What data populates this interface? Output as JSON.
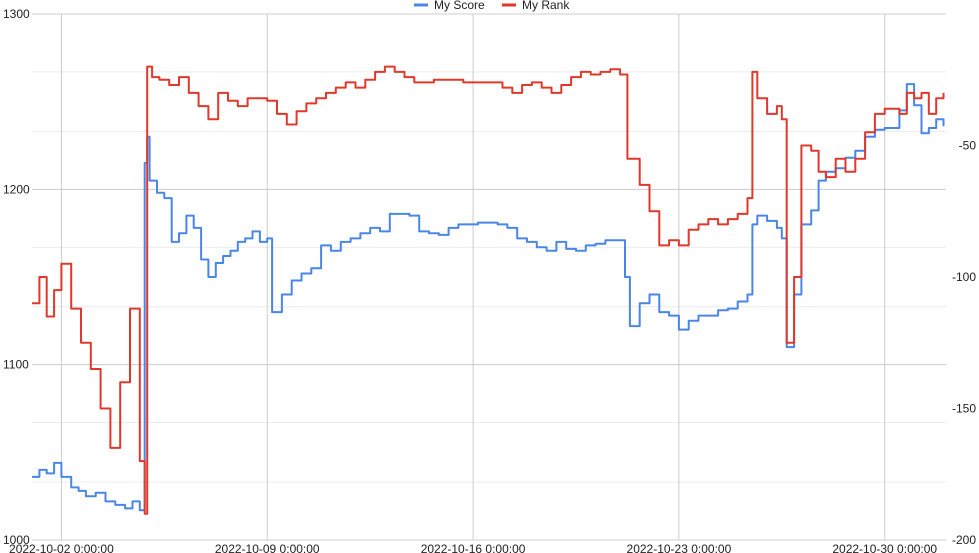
{
  "chart_data": {
    "type": "line",
    "legend": {
      "position": "top",
      "items": [
        {
          "label": "My Score",
          "color": "#4a86e8"
        },
        {
          "label": "My Rank",
          "color": "#e0382b"
        }
      ]
    },
    "x_axis": {
      "tick_labels": [
        "2022-10-02 0:00:00",
        "2022-10-09 0:00:00",
        "2022-10-16 0:00:00",
        "2022-10-23 0:00:00",
        "2022-10-30 0:00:00"
      ],
      "range": [
        "2022-10-01 00:00",
        "2022-11-01 02:00"
      ]
    },
    "y_axis_left": {
      "ticks": [
        1000,
        1100,
        1200,
        1300
      ],
      "range": [
        1000,
        1300
      ],
      "minor_gridlines": [
        1033,
        1067,
        1133,
        1167,
        1233,
        1267
      ]
    },
    "y_axis_right": {
      "ticks": [
        -50,
        -100,
        -150,
        -200
      ],
      "range": [
        -200,
        0
      ]
    },
    "grid": true,
    "series": [
      {
        "name": "My Score",
        "axis": "left",
        "color": "#4a86e8",
        "points": [
          [
            "2022-10-01 00:00",
            1036
          ],
          [
            "2022-10-01 06:00",
            1040
          ],
          [
            "2022-10-01 12:00",
            1038
          ],
          [
            "2022-10-01 18:00",
            1044
          ],
          [
            "2022-10-02 00:00",
            1036
          ],
          [
            "2022-10-02 08:00",
            1030
          ],
          [
            "2022-10-02 14:00",
            1028
          ],
          [
            "2022-10-02 20:00",
            1025
          ],
          [
            "2022-10-03 04:00",
            1027
          ],
          [
            "2022-10-03 12:00",
            1022
          ],
          [
            "2022-10-03 20:00",
            1020
          ],
          [
            "2022-10-04 04:00",
            1018
          ],
          [
            "2022-10-04 10:00",
            1022
          ],
          [
            "2022-10-04 16:00",
            1017
          ],
          [
            "2022-10-04 20:00",
            1215
          ],
          [
            "2022-10-04 22:00",
            1230
          ],
          [
            "2022-10-05 00:00",
            1205
          ],
          [
            "2022-10-05 06:00",
            1198
          ],
          [
            "2022-10-05 12:00",
            1195
          ],
          [
            "2022-10-05 18:00",
            1170
          ],
          [
            "2022-10-06 00:00",
            1175
          ],
          [
            "2022-10-06 06:00",
            1185
          ],
          [
            "2022-10-06 12:00",
            1178
          ],
          [
            "2022-10-06 18:00",
            1160
          ],
          [
            "2022-10-07 00:00",
            1150
          ],
          [
            "2022-10-07 06:00",
            1158
          ],
          [
            "2022-10-07 12:00",
            1162
          ],
          [
            "2022-10-07 18:00",
            1165
          ],
          [
            "2022-10-08 00:00",
            1170
          ],
          [
            "2022-10-08 06:00",
            1172
          ],
          [
            "2022-10-08 12:00",
            1176
          ],
          [
            "2022-10-08 18:00",
            1170
          ],
          [
            "2022-10-09 00:00",
            1172
          ],
          [
            "2022-10-09 04:00",
            1130
          ],
          [
            "2022-10-09 12:00",
            1140
          ],
          [
            "2022-10-09 20:00",
            1148
          ],
          [
            "2022-10-10 04:00",
            1152
          ],
          [
            "2022-10-10 12:00",
            1155
          ],
          [
            "2022-10-10 20:00",
            1168
          ],
          [
            "2022-10-11 04:00",
            1165
          ],
          [
            "2022-10-11 12:00",
            1170
          ],
          [
            "2022-10-11 20:00",
            1172
          ],
          [
            "2022-10-12 04:00",
            1175
          ],
          [
            "2022-10-12 12:00",
            1178
          ],
          [
            "2022-10-12 20:00",
            1176
          ],
          [
            "2022-10-13 04:00",
            1186
          ],
          [
            "2022-10-13 12:00",
            1186
          ],
          [
            "2022-10-13 20:00",
            1185
          ],
          [
            "2022-10-14 04:00",
            1176
          ],
          [
            "2022-10-14 12:00",
            1175
          ],
          [
            "2022-10-14 20:00",
            1174
          ],
          [
            "2022-10-15 04:00",
            1178
          ],
          [
            "2022-10-15 12:00",
            1180
          ],
          [
            "2022-10-15 20:00",
            1180
          ],
          [
            "2022-10-16 04:00",
            1181
          ],
          [
            "2022-10-16 12:00",
            1181
          ],
          [
            "2022-10-16 20:00",
            1180
          ],
          [
            "2022-10-17 04:00",
            1178
          ],
          [
            "2022-10-17 12:00",
            1172
          ],
          [
            "2022-10-17 20:00",
            1170
          ],
          [
            "2022-10-18 04:00",
            1167
          ],
          [
            "2022-10-18 12:00",
            1165
          ],
          [
            "2022-10-18 20:00",
            1170
          ],
          [
            "2022-10-19 04:00",
            1166
          ],
          [
            "2022-10-19 12:00",
            1165
          ],
          [
            "2022-10-19 20:00",
            1168
          ],
          [
            "2022-10-20 04:00",
            1169
          ],
          [
            "2022-10-20 12:00",
            1171
          ],
          [
            "2022-10-20 20:00",
            1171
          ],
          [
            "2022-10-21 04:00",
            1150
          ],
          [
            "2022-10-21 08:00",
            1122
          ],
          [
            "2022-10-21 16:00",
            1135
          ],
          [
            "2022-10-22 00:00",
            1140
          ],
          [
            "2022-10-22 08:00",
            1130
          ],
          [
            "2022-10-22 16:00",
            1128
          ],
          [
            "2022-10-23 00:00",
            1120
          ],
          [
            "2022-10-23 08:00",
            1125
          ],
          [
            "2022-10-23 16:00",
            1128
          ],
          [
            "2022-10-24 00:00",
            1128
          ],
          [
            "2022-10-24 08:00",
            1131
          ],
          [
            "2022-10-24 16:00",
            1132
          ],
          [
            "2022-10-25 00:00",
            1136
          ],
          [
            "2022-10-25 08:00",
            1140
          ],
          [
            "2022-10-25 12:00",
            1180
          ],
          [
            "2022-10-25 16:00",
            1185
          ],
          [
            "2022-10-26 00:00",
            1182
          ],
          [
            "2022-10-26 08:00",
            1178
          ],
          [
            "2022-10-26 12:00",
            1172
          ],
          [
            "2022-10-26 16:00",
            1110
          ],
          [
            "2022-10-26 22:00",
            1140
          ],
          [
            "2022-10-27 04:00",
            1180
          ],
          [
            "2022-10-27 12:00",
            1188
          ],
          [
            "2022-10-27 18:00",
            1205
          ],
          [
            "2022-10-28 00:00",
            1210
          ],
          [
            "2022-10-28 08:00",
            1212
          ],
          [
            "2022-10-28 16:00",
            1218
          ],
          [
            "2022-10-29 00:00",
            1222
          ],
          [
            "2022-10-29 08:00",
            1230
          ],
          [
            "2022-10-29 16:00",
            1234
          ],
          [
            "2022-10-30 00:00",
            1235
          ],
          [
            "2022-10-30 12:00",
            1245
          ],
          [
            "2022-10-30 18:00",
            1260
          ],
          [
            "2022-10-31 00:00",
            1248
          ],
          [
            "2022-10-31 06:00",
            1232
          ],
          [
            "2022-10-31 12:00",
            1235
          ],
          [
            "2022-10-31 18:00",
            1240
          ],
          [
            "2022-11-01 00:00",
            1236
          ]
        ]
      },
      {
        "name": "My Rank",
        "axis": "right",
        "color": "#e0382b",
        "points": [
          [
            "2022-10-01 00:00",
            -110
          ],
          [
            "2022-10-01 06:00",
            -100
          ],
          [
            "2022-10-01 12:00",
            -115
          ],
          [
            "2022-10-01 18:00",
            -105
          ],
          [
            "2022-10-02 00:00",
            -95
          ],
          [
            "2022-10-02 08:00",
            -112
          ],
          [
            "2022-10-02 16:00",
            -125
          ],
          [
            "2022-10-03 00:00",
            -135
          ],
          [
            "2022-10-03 08:00",
            -150
          ],
          [
            "2022-10-03 16:00",
            -165
          ],
          [
            "2022-10-04 00:00",
            -140
          ],
          [
            "2022-10-04 08:00",
            -112
          ],
          [
            "2022-10-04 16:00",
            -170
          ],
          [
            "2022-10-04 20:00",
            -190
          ],
          [
            "2022-10-04 22:00",
            -20
          ],
          [
            "2022-10-05 02:00",
            -24
          ],
          [
            "2022-10-05 08:00",
            -25
          ],
          [
            "2022-10-05 16:00",
            -27
          ],
          [
            "2022-10-06 00:00",
            -24
          ],
          [
            "2022-10-06 08:00",
            -30
          ],
          [
            "2022-10-06 16:00",
            -35
          ],
          [
            "2022-10-07 00:00",
            -40
          ],
          [
            "2022-10-07 08:00",
            -30
          ],
          [
            "2022-10-07 16:00",
            -33
          ],
          [
            "2022-10-08 00:00",
            -35
          ],
          [
            "2022-10-08 08:00",
            -32
          ],
          [
            "2022-10-08 16:00",
            -32
          ],
          [
            "2022-10-09 00:00",
            -33
          ],
          [
            "2022-10-09 08:00",
            -38
          ],
          [
            "2022-10-09 16:00",
            -42
          ],
          [
            "2022-10-10 00:00",
            -37
          ],
          [
            "2022-10-10 08:00",
            -34
          ],
          [
            "2022-10-10 16:00",
            -32
          ],
          [
            "2022-10-11 00:00",
            -30
          ],
          [
            "2022-10-11 08:00",
            -28
          ],
          [
            "2022-10-11 16:00",
            -26
          ],
          [
            "2022-10-12 00:00",
            -28
          ],
          [
            "2022-10-12 08:00",
            -25
          ],
          [
            "2022-10-12 16:00",
            -22
          ],
          [
            "2022-10-13 00:00",
            -20
          ],
          [
            "2022-10-13 08:00",
            -22
          ],
          [
            "2022-10-13 16:00",
            -24
          ],
          [
            "2022-10-14 00:00",
            -26
          ],
          [
            "2022-10-14 08:00",
            -26
          ],
          [
            "2022-10-14 16:00",
            -25
          ],
          [
            "2022-10-15 00:00",
            -25
          ],
          [
            "2022-10-15 08:00",
            -25
          ],
          [
            "2022-10-15 16:00",
            -26
          ],
          [
            "2022-10-16 00:00",
            -26
          ],
          [
            "2022-10-16 08:00",
            -26
          ],
          [
            "2022-10-16 16:00",
            -26
          ],
          [
            "2022-10-17 00:00",
            -28
          ],
          [
            "2022-10-17 08:00",
            -30
          ],
          [
            "2022-10-17 16:00",
            -27
          ],
          [
            "2022-10-18 00:00",
            -26
          ],
          [
            "2022-10-18 08:00",
            -28
          ],
          [
            "2022-10-18 16:00",
            -30
          ],
          [
            "2022-10-19 00:00",
            -27
          ],
          [
            "2022-10-19 08:00",
            -24
          ],
          [
            "2022-10-19 16:00",
            -22
          ],
          [
            "2022-10-20 00:00",
            -23
          ],
          [
            "2022-10-20 08:00",
            -22
          ],
          [
            "2022-10-20 16:00",
            -21
          ],
          [
            "2022-10-21 00:00",
            -23
          ],
          [
            "2022-10-21 06:00",
            -55
          ],
          [
            "2022-10-21 16:00",
            -65
          ],
          [
            "2022-10-22 00:00",
            -75
          ],
          [
            "2022-10-22 08:00",
            -88
          ],
          [
            "2022-10-22 16:00",
            -86
          ],
          [
            "2022-10-23 00:00",
            -88
          ],
          [
            "2022-10-23 08:00",
            -82
          ],
          [
            "2022-10-23 16:00",
            -80
          ],
          [
            "2022-10-24 00:00",
            -78
          ],
          [
            "2022-10-24 08:00",
            -80
          ],
          [
            "2022-10-24 16:00",
            -78
          ],
          [
            "2022-10-25 00:00",
            -76
          ],
          [
            "2022-10-25 08:00",
            -70
          ],
          [
            "2022-10-25 12:00",
            -22
          ],
          [
            "2022-10-25 16:00",
            -32
          ],
          [
            "2022-10-26 00:00",
            -38
          ],
          [
            "2022-10-26 08:00",
            -35
          ],
          [
            "2022-10-26 12:00",
            -40
          ],
          [
            "2022-10-26 16:00",
            -125
          ],
          [
            "2022-10-26 22:00",
            -100
          ],
          [
            "2022-10-27 04:00",
            -50
          ],
          [
            "2022-10-27 12:00",
            -52
          ],
          [
            "2022-10-27 18:00",
            -60
          ],
          [
            "2022-10-28 00:00",
            -62
          ],
          [
            "2022-10-28 08:00",
            -55
          ],
          [
            "2022-10-28 16:00",
            -60
          ],
          [
            "2022-10-29 00:00",
            -55
          ],
          [
            "2022-10-29 08:00",
            -45
          ],
          [
            "2022-10-29 16:00",
            -38
          ],
          [
            "2022-10-30 00:00",
            -36
          ],
          [
            "2022-10-30 12:00",
            -38
          ],
          [
            "2022-10-30 18:00",
            -30
          ],
          [
            "2022-10-31 00:00",
            -32
          ],
          [
            "2022-10-31 06:00",
            -30
          ],
          [
            "2022-10-31 12:00",
            -38
          ],
          [
            "2022-10-31 18:00",
            -32
          ],
          [
            "2022-11-01 00:00",
            -30
          ]
        ]
      }
    ]
  }
}
